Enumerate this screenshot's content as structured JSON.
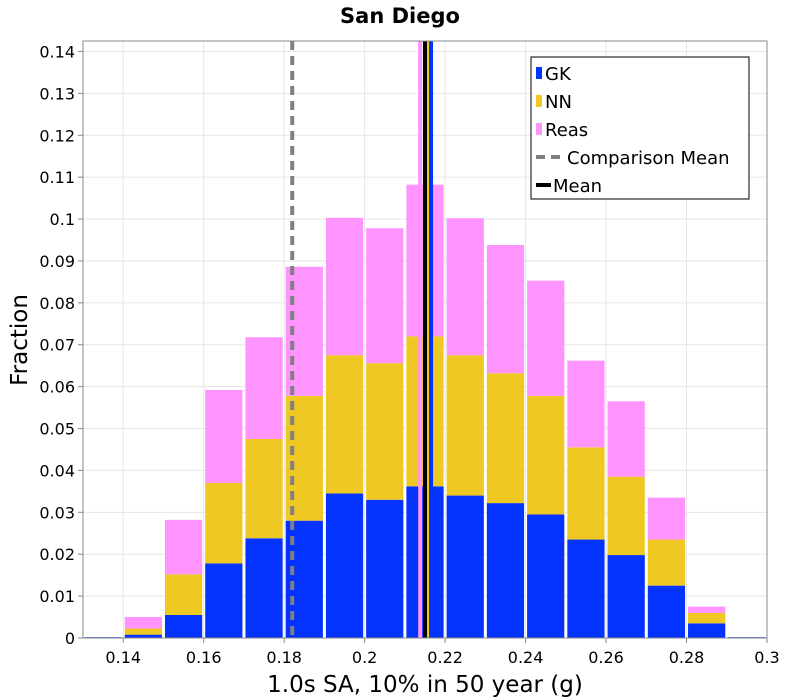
{
  "chart_data": {
    "type": "bar",
    "stacked": true,
    "title": "San Diego",
    "xlabel": "1.0s SA, 10% in 50 year (g)",
    "ylabel": "Fraction",
    "xlim": [
      0.13,
      0.3
    ],
    "ylim": [
      0,
      0.1425
    ],
    "grid": true,
    "legend_position": "top-right",
    "x_ticks": [
      "0.14",
      "0.16",
      "0.18",
      "0.2",
      "0.22",
      "0.24",
      "0.26",
      "0.28",
      "0.3"
    ],
    "y_ticks": [
      "0",
      "0.01",
      "0.02",
      "0.03",
      "0.04",
      "0.05",
      "0.06",
      "0.07",
      "0.08",
      "0.09",
      "0.1",
      "0.11",
      "0.12",
      "0.13",
      "0.14"
    ],
    "bin_width": 0.01,
    "bin_centers": [
      0.135,
      0.145,
      0.155,
      0.165,
      0.175,
      0.185,
      0.195,
      0.205,
      0.215,
      0.225,
      0.235,
      0.245,
      0.255,
      0.265,
      0.275,
      0.285,
      0.295
    ],
    "series": [
      {
        "name": "GK",
        "color": "#0433ff",
        "values": [
          0.0002,
          0.0008,
          0.0055,
          0.0178,
          0.0238,
          0.028,
          0.0345,
          0.033,
          0.0362,
          0.034,
          0.0322,
          0.0295,
          0.0235,
          0.0198,
          0.0125,
          0.0035,
          0.0002
        ]
      },
      {
        "name": "NN",
        "color": "#f0c824",
        "values": [
          0.0,
          0.0015,
          0.0097,
          0.0192,
          0.0237,
          0.0298,
          0.033,
          0.0326,
          0.0358,
          0.0335,
          0.031,
          0.0283,
          0.022,
          0.0187,
          0.011,
          0.0025,
          0.0
        ]
      },
      {
        "name": "Reas",
        "color": "#ff94ff",
        "values": [
          0.0,
          0.0027,
          0.013,
          0.0222,
          0.0243,
          0.0308,
          0.0328,
          0.0322,
          0.0362,
          0.0327,
          0.0306,
          0.0275,
          0.0207,
          0.018,
          0.01,
          0.0015,
          0.0
        ]
      }
    ],
    "lines": [
      {
        "name": "Comparison Mean",
        "color": "#808080",
        "style": "dashed",
        "x": 0.182
      },
      {
        "name": "Mean",
        "color": "#000000",
        "style": "solid",
        "x": 0.215
      }
    ],
    "series_mean_lines": [
      {
        "series": "GK",
        "x": 0.2165
      },
      {
        "series": "NN",
        "x": 0.2155
      },
      {
        "series": "Reas",
        "x": 0.2138
      }
    ]
  }
}
